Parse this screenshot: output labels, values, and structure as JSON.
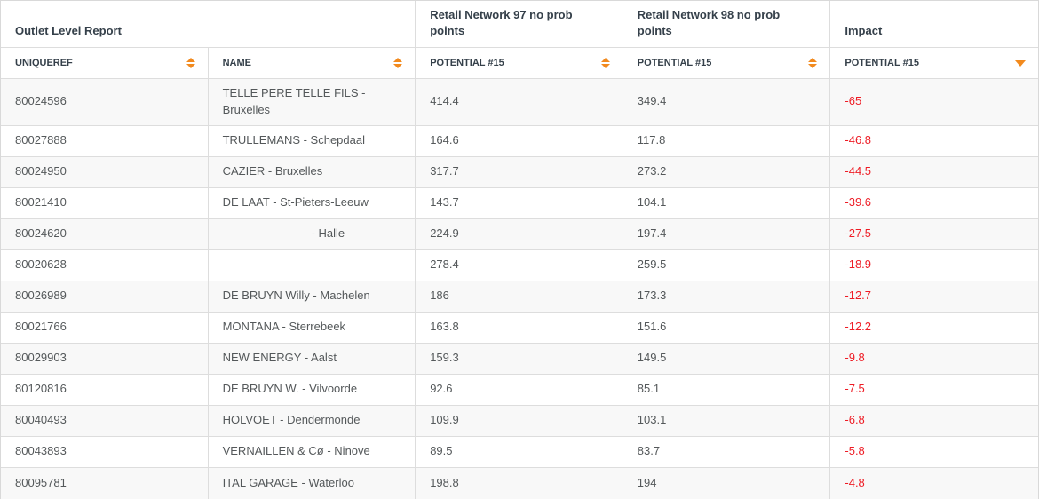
{
  "colors": {
    "accent_orange": "#f28a1e",
    "negative_red": "#ee1c25",
    "header_text": "#35404a",
    "body_text": "#54585a",
    "stripe": "#f8f8f8",
    "border": "#dddddd"
  },
  "table": {
    "group_headers": [
      {
        "label": "Outlet Level Report",
        "span": 2
      },
      {
        "label": "Retail Network 97 no prob points",
        "span": 1
      },
      {
        "label": "Retail Network 98 no prob points",
        "span": 1
      },
      {
        "label": "Impact",
        "span": 1
      }
    ],
    "columns": [
      {
        "label": "UNIQUEREF",
        "sort_icon": "up-down"
      },
      {
        "label": "NAME",
        "sort_icon": "up-down"
      },
      {
        "label": "POTENTIAL #15",
        "sort_icon": "up-down"
      },
      {
        "label": "POTENTIAL #15",
        "sort_icon": "up-down"
      },
      {
        "label": "POTENTIAL #15",
        "sort_icon": "down",
        "sorted": true
      }
    ],
    "rows": [
      {
        "uniqueref": "80024596",
        "name": "TELLE PERE TELLE FILS - Bruxelles",
        "rn97_potential": "414.4",
        "rn98_potential": "349.4",
        "impact": "-65"
      },
      {
        "uniqueref": "80027888",
        "name": "TRULLEMANS - Schepdaal",
        "rn97_potential": "164.6",
        "rn98_potential": "117.8",
        "impact": "-46.8"
      },
      {
        "uniqueref": "80024950",
        "name": "CAZIER - Bruxelles",
        "rn97_potential": "317.7",
        "rn98_potential": "273.2",
        "impact": "-44.5"
      },
      {
        "uniqueref": "80021410",
        "name": "DE LAAT - St-Pieters-Leeuw",
        "rn97_potential": "143.7",
        "rn98_potential": "104.1",
        "impact": "-39.6"
      },
      {
        "uniqueref": "80024620",
        "name": "- Halle",
        "hidden_prefix": true,
        "rn97_potential": "224.9",
        "rn98_potential": "197.4",
        "impact": "-27.5"
      },
      {
        "uniqueref": "80020628",
        "name": "",
        "rn97_potential": "278.4",
        "rn98_potential": "259.5",
        "impact": "-18.9"
      },
      {
        "uniqueref": "80026989",
        "name": "DE BRUYN Willy - Machelen",
        "rn97_potential": "186",
        "rn98_potential": "173.3",
        "impact": "-12.7"
      },
      {
        "uniqueref": "80021766",
        "name": "MONTANA - Sterrebeek",
        "rn97_potential": "163.8",
        "rn98_potential": "151.6",
        "impact": "-12.2"
      },
      {
        "uniqueref": "80029903",
        "name": "NEW ENERGY - Aalst",
        "rn97_potential": "159.3",
        "rn98_potential": "149.5",
        "impact": "-9.8"
      },
      {
        "uniqueref": "80120816",
        "name": "DE BRUYN W. - Vilvoorde",
        "rn97_potential": "92.6",
        "rn98_potential": "85.1",
        "impact": "-7.5"
      },
      {
        "uniqueref": "80040493",
        "name": "HOLVOET - Dendermonde",
        "rn97_potential": "109.9",
        "rn98_potential": "103.1",
        "impact": "-6.8"
      },
      {
        "uniqueref": "80043893",
        "name": "VERNAILLEN & Cø - Ninove",
        "rn97_potential": "89.5",
        "rn98_potential": "83.7",
        "impact": "-5.8"
      },
      {
        "uniqueref": "80095781",
        "name": "ITAL GARAGE - Waterloo",
        "rn97_potential": "198.8",
        "rn98_potential": "194",
        "impact": "-4.8"
      }
    ]
  }
}
